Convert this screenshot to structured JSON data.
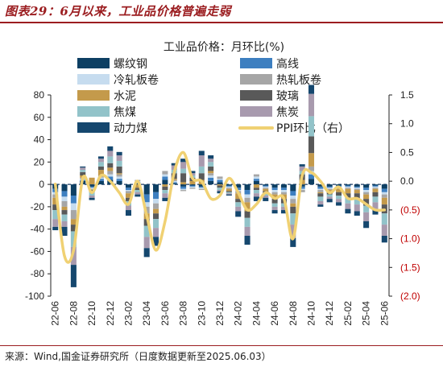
{
  "figure_title": "图表29：6月以来，工业品价格普遍走弱",
  "source_note": "来源：Wind,国金证券研究所（日度数据更新至2025.06.03）",
  "colors": {
    "title_red": "#9b1d20",
    "negative_red": "#c00000"
  },
  "chart_data": {
    "type": "bar",
    "title": "工业品价格：月环比(%)",
    "legend_placement": "top",
    "stacked": true,
    "categories": [
      "22-06",
      "22-07",
      "22-08",
      "22-09",
      "22-10",
      "22-11",
      "22-12",
      "23-01",
      "23-02",
      "23-03",
      "23-04",
      "23-05",
      "23-06",
      "23-07",
      "23-08",
      "23-09",
      "23-10",
      "23-11",
      "23-12",
      "24-01",
      "24-02",
      "24-03",
      "24-04",
      "24-05",
      "24-06",
      "24-07",
      "24-08",
      "24-09",
      "24-10",
      "24-11",
      "24-12",
      "25-01",
      "25-02",
      "25-03",
      "25-04",
      "25-05",
      "25-06"
    ],
    "x_tick_labels": [
      "22-06",
      "22-08",
      "22-10",
      "22-12",
      "23-02",
      "23-04",
      "23-06",
      "23-08",
      "23-10",
      "23-12",
      "24-02",
      "24-04",
      "24-06",
      "24-08",
      "24-10",
      "24-12",
      "25-02",
      "25-04",
      "25-06"
    ],
    "ylim_left": [
      -100,
      80
    ],
    "yticks_left": [
      "80",
      "60",
      "40",
      "20",
      "0",
      "-20",
      "-40",
      "-60",
      "-80",
      "-100"
    ],
    "ylim_right": [
      -2.0,
      1.5
    ],
    "yticks_right": [
      "1.5",
      "1.0",
      "0.5",
      "0.0",
      "(0.5)",
      "(1.0)",
      "(1.5)",
      "(2.0)"
    ],
    "series": [
      {
        "name": "螺纹钢",
        "color": "#0d3f63",
        "values": [
          -4,
          -6,
          -10,
          3,
          -2,
          3,
          4,
          3,
          -3,
          1,
          -9,
          -7,
          4,
          1,
          -2,
          -1,
          -2,
          3,
          2,
          -1,
          -3,
          -5,
          3,
          -1,
          -3,
          -3,
          -6,
          -2,
          5,
          -2,
          -2,
          -1,
          -1,
          -2,
          -3,
          -1,
          -4
        ]
      },
      {
        "name": "高线",
        "color": "#3d7fc0",
        "values": [
          -3,
          -5,
          -7,
          1,
          -1,
          2,
          3,
          2,
          -2,
          1,
          -7,
          -6,
          3,
          1,
          -2,
          -1,
          -1,
          3,
          2,
          -1,
          -2,
          -4,
          2,
          -1,
          -2,
          -2,
          -4,
          -2,
          4,
          -2,
          -1,
          -1,
          -1,
          -1,
          -2,
          -1,
          -3
        ]
      },
      {
        "name": "冷轧板卷",
        "color": "#c6dcef",
        "values": [
          -2,
          -4,
          -6,
          1,
          -1,
          1,
          2,
          2,
          -1,
          1,
          -4,
          -4,
          2,
          1,
          -1,
          -1,
          -1,
          2,
          1,
          -1,
          -1,
          -3,
          2,
          -1,
          -2,
          -2,
          -3,
          -1,
          3,
          -1,
          -1,
          -1,
          -1,
          -1,
          -2,
          -1,
          -2
        ]
      },
      {
        "name": "热轧板卷",
        "color": "#a6a6a6",
        "values": [
          -3,
          -5,
          -8,
          1,
          -1,
          2,
          3,
          2,
          -2,
          1,
          -6,
          -5,
          3,
          1,
          -1,
          -1,
          -1,
          2,
          2,
          -1,
          -2,
          -4,
          2,
          -1,
          -2,
          -2,
          -4,
          -2,
          4,
          -2,
          -1,
          -1,
          -1,
          -1,
          -2,
          -1,
          -3
        ]
      },
      {
        "name": "水泥",
        "color": "#c49a4b",
        "values": [
          -6,
          -3,
          -5,
          2,
          6,
          5,
          3,
          1,
          -4,
          -3,
          -5,
          -4,
          -2,
          1,
          2,
          3,
          4,
          2,
          -1,
          -2,
          -5,
          -8,
          -3,
          -2,
          -4,
          -4,
          -3,
          4,
          12,
          -1,
          -2,
          -3,
          -4,
          -3,
          -4,
          -3,
          -6
        ]
      },
      {
        "name": "玻璃",
        "color": "#595959",
        "values": [
          -5,
          -4,
          -6,
          3,
          -2,
          3,
          4,
          6,
          -3,
          -2,
          -6,
          -5,
          -3,
          5,
          8,
          3,
          6,
          4,
          -2,
          -1,
          -3,
          -6,
          -2,
          -2,
          -4,
          -4,
          -6,
          5,
          15,
          -3,
          -2,
          -3,
          -4,
          -5,
          -6,
          -4,
          -8
        ]
      },
      {
        "name": "焦煤",
        "color": "#92c3c9",
        "values": [
          -8,
          -6,
          -14,
          2,
          -3,
          4,
          6,
          5,
          -4,
          -2,
          -10,
          -8,
          -3,
          3,
          4,
          2,
          6,
          4,
          -2,
          -1,
          -4,
          -8,
          -3,
          -2,
          -3,
          -3,
          -10,
          3,
          18,
          -4,
          -2,
          -3,
          -5,
          -5,
          -6,
          -5,
          -10
        ]
      },
      {
        "name": "焦炭",
        "color": "#a89aae",
        "values": [
          -7,
          -5,
          -16,
          2,
          -2,
          3,
          5,
          5,
          -4,
          -2,
          -10,
          -8,
          -4,
          4,
          6,
          2,
          10,
          3,
          -1,
          -1,
          -4,
          -8,
          -3,
          -2,
          -3,
          -3,
          -12,
          4,
          20,
          -3,
          -2,
          -3,
          -5,
          -6,
          -8,
          -6,
          -10
        ]
      },
      {
        "name": "动力煤",
        "color": "#15476e",
        "values": [
          -3,
          -8,
          -20,
          1,
          -2,
          2,
          4,
          3,
          -5,
          -2,
          -8,
          -8,
          -3,
          2,
          3,
          2,
          4,
          3,
          -2,
          -1,
          -5,
          -8,
          -4,
          -3,
          -3,
          -3,
          -8,
          2,
          8,
          -2,
          -3,
          -3,
          -4,
          -4,
          -6,
          -5,
          -6
        ]
      }
    ],
    "line_series": {
      "name": "PPI环比（右）",
      "color": "#f0d173",
      "values": [
        -0.05,
        -1.3,
        -1.2,
        0.05,
        -0.2,
        0.1,
        0.0,
        -0.2,
        -0.4,
        0.0,
        -0.6,
        -1.2,
        -0.7,
        0.15,
        0.5,
        0.05,
        0.0,
        -0.3,
        -0.25,
        0.05,
        -0.2,
        -0.5,
        -0.4,
        -0.2,
        -0.3,
        -0.3,
        -1.0,
        0.1,
        0.15,
        0.0,
        -0.2,
        -0.1,
        -0.3,
        -0.3,
        -0.4,
        -0.5,
        -0.5
      ]
    }
  }
}
